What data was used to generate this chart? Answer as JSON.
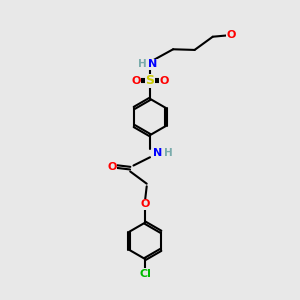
{
  "bg_color": "#e8e8e8",
  "colors": {
    "C": "#000000",
    "H": "#7aabab",
    "N": "#0000ff",
    "O": "#ff0000",
    "S": "#cccc00",
    "Cl": "#00bb00",
    "bond": "#000000"
  },
  "lw": 1.5,
  "ring_r": 0.55,
  "xlim": [
    -2.5,
    2.5
  ],
  "ylim": [
    -4.5,
    4.5
  ]
}
